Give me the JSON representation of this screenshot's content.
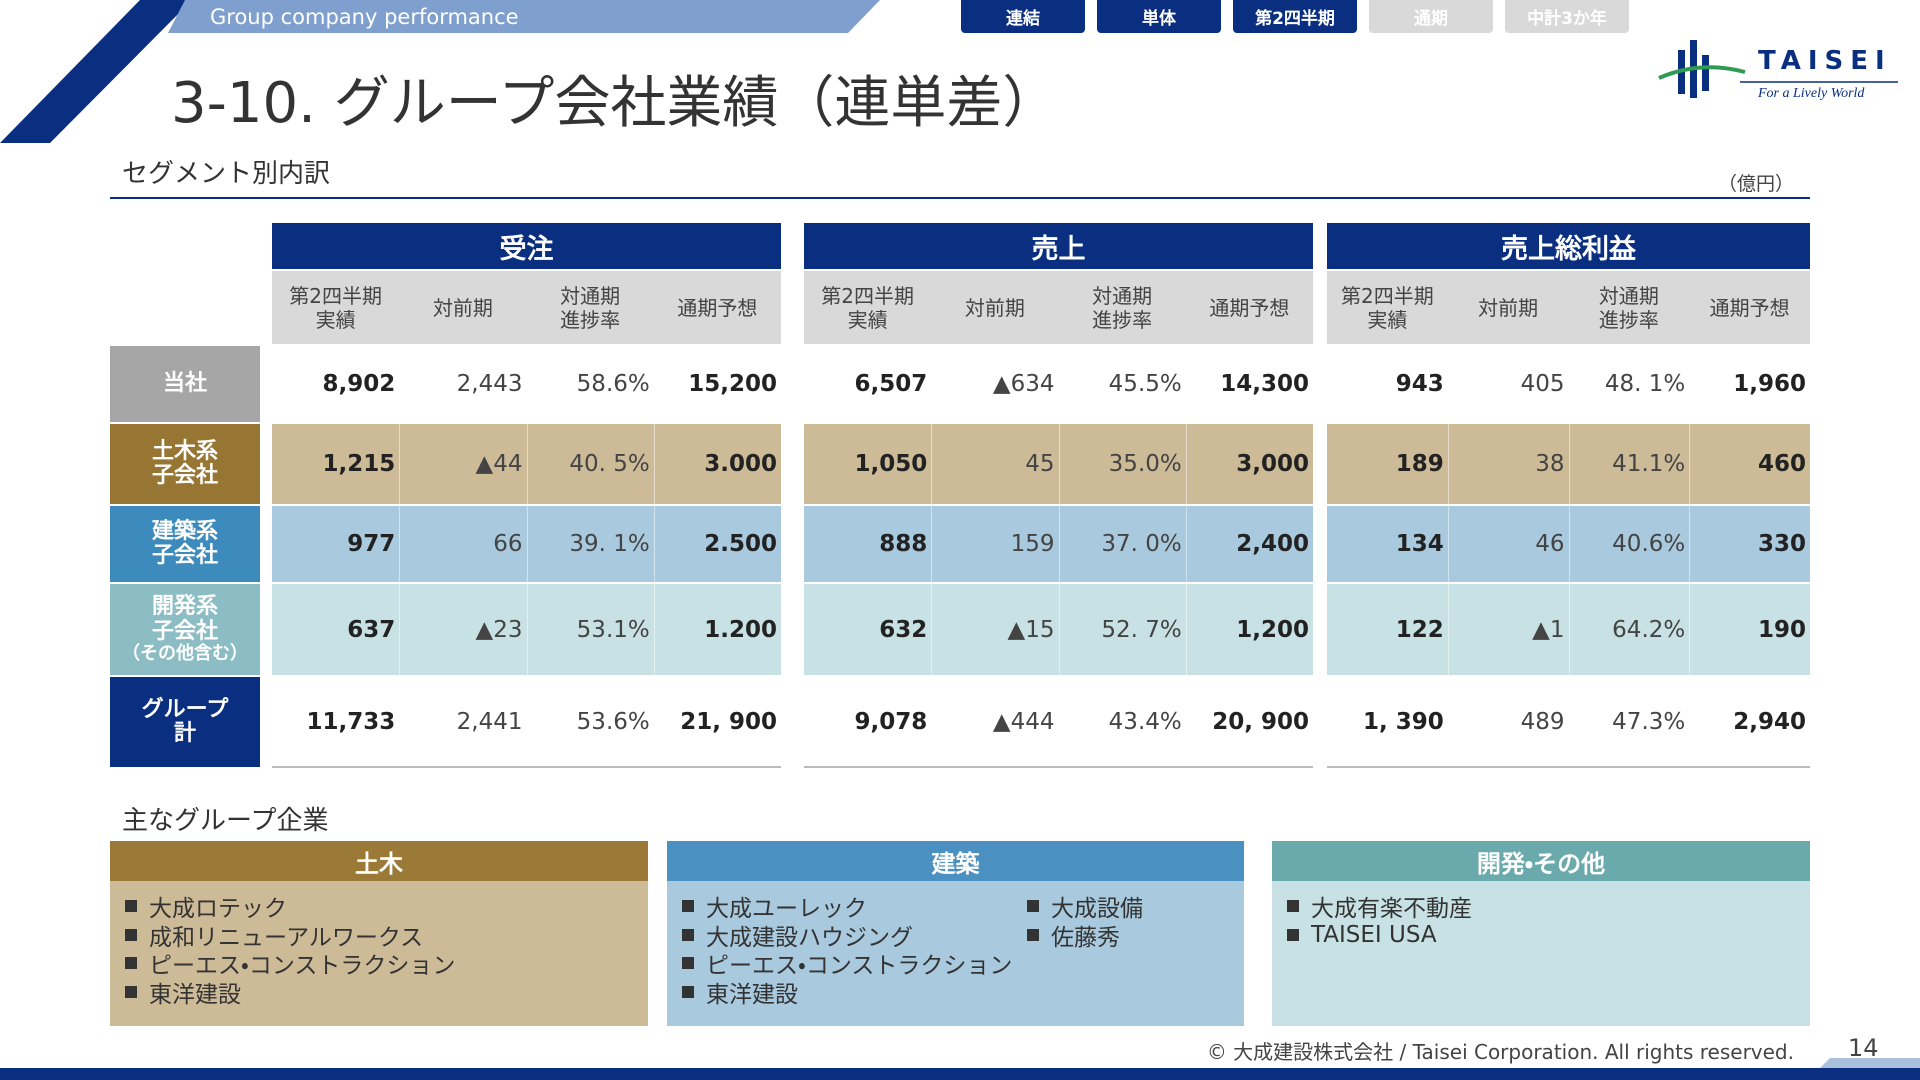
{
  "header": {
    "section_tag": "Group company performance",
    "tabs": [
      {
        "label": "連結",
        "active": true
      },
      {
        "label": "単体",
        "active": true
      },
      {
        "label": "第2四半期",
        "active": true
      },
      {
        "label": "通期",
        "active": false
      },
      {
        "label": "中計3か年",
        "active": false
      }
    ],
    "title": "3-10. グループ会社業績（連単差）",
    "logo": {
      "name": "TAISEI",
      "tagline": "For a Lively World"
    }
  },
  "segment": {
    "title": "セグメント別内訳",
    "unit": "（億円）",
    "table": {
      "groups": [
        "受注",
        "売上",
        "売上総利益"
      ],
      "columns": [
        [
          "第2四半期",
          "実績"
        ],
        [
          "対前期"
        ],
        [
          "対通期",
          "進捗率"
        ],
        [
          "通期予想"
        ]
      ],
      "rows": [
        {
          "label": [
            "当社"
          ],
          "color": "#a6a6a6",
          "background": "#ffffff",
          "cells": [
            "8,902",
            "2,443",
            "58.6%",
            "15,200",
            "6,507",
            "▲634",
            "45.5%",
            "14,300",
            "943",
            "405",
            "48. 1%",
            "1,960"
          ]
        },
        {
          "label": [
            "土木系",
            "子会社"
          ],
          "color": "#977634",
          "background": "#cdbb98",
          "cells": [
            "1,215",
            "▲44",
            "40. 5%",
            "3.000",
            "1,050",
            "45",
            "35.0%",
            "3,000",
            "189",
            "38",
            "41.1%",
            "460"
          ]
        },
        {
          "label": [
            "建築系",
            "子会社"
          ],
          "color": "#3d8bbd",
          "background": "#a9c9de",
          "cells": [
            "977",
            "66",
            "39. 1%",
            "2.500",
            "888",
            "159",
            "37. 0%",
            "2,400",
            "134",
            "46",
            "40.6%",
            "330"
          ]
        },
        {
          "label": [
            "開発系",
            "子会社",
            "（その他含む）"
          ],
          "color": "#8cbdc5",
          "background": "#c7e1e4",
          "cells": [
            "637",
            "▲23",
            "53.1%",
            "1.200",
            "632",
            "▲15",
            "52. 7%",
            "1,200",
            "122",
            "▲1",
            "64.2%",
            "190"
          ]
        },
        {
          "label": [
            "グループ",
            "計"
          ],
          "color": "#0a2e80",
          "background": "#ffffff",
          "cells": [
            "11,733",
            "2,441",
            "53.6%",
            "21, 900",
            "9,078",
            "▲444",
            "43.4%",
            "20, 900",
            "1, 390",
            "489",
            "47.3%",
            "2,940"
          ]
        }
      ]
    }
  },
  "companies": {
    "title": "主なグループ企業",
    "boxes": [
      {
        "title": "土木",
        "color": "#9a7a36",
        "background": "#cdbb98",
        "columns": [
          [
            "大成ロテック",
            "成和リニューアルワークス",
            "ピーエス・コンストラクション",
            "東洋建設"
          ]
        ]
      },
      {
        "title": "建築",
        "color": "#4a90c0",
        "background": "#a9c9de",
        "columns": [
          [
            "大成ユーレック",
            "大成建設ハウジング",
            "ピーエス・コンストラクション",
            "東洋建設"
          ],
          [
            "大成設備",
            "佐藤秀"
          ]
        ]
      },
      {
        "title": "開発・その他",
        "color": "#6aaaad",
        "background": "#c7e1e4",
        "columns": [
          [
            "大成有楽不動産",
            "TAISEI USA"
          ]
        ]
      }
    ]
  },
  "footer": {
    "copyright": "© 大成建設株式会社 / Taisei Corporation. All rights reserved.",
    "page": "14"
  }
}
